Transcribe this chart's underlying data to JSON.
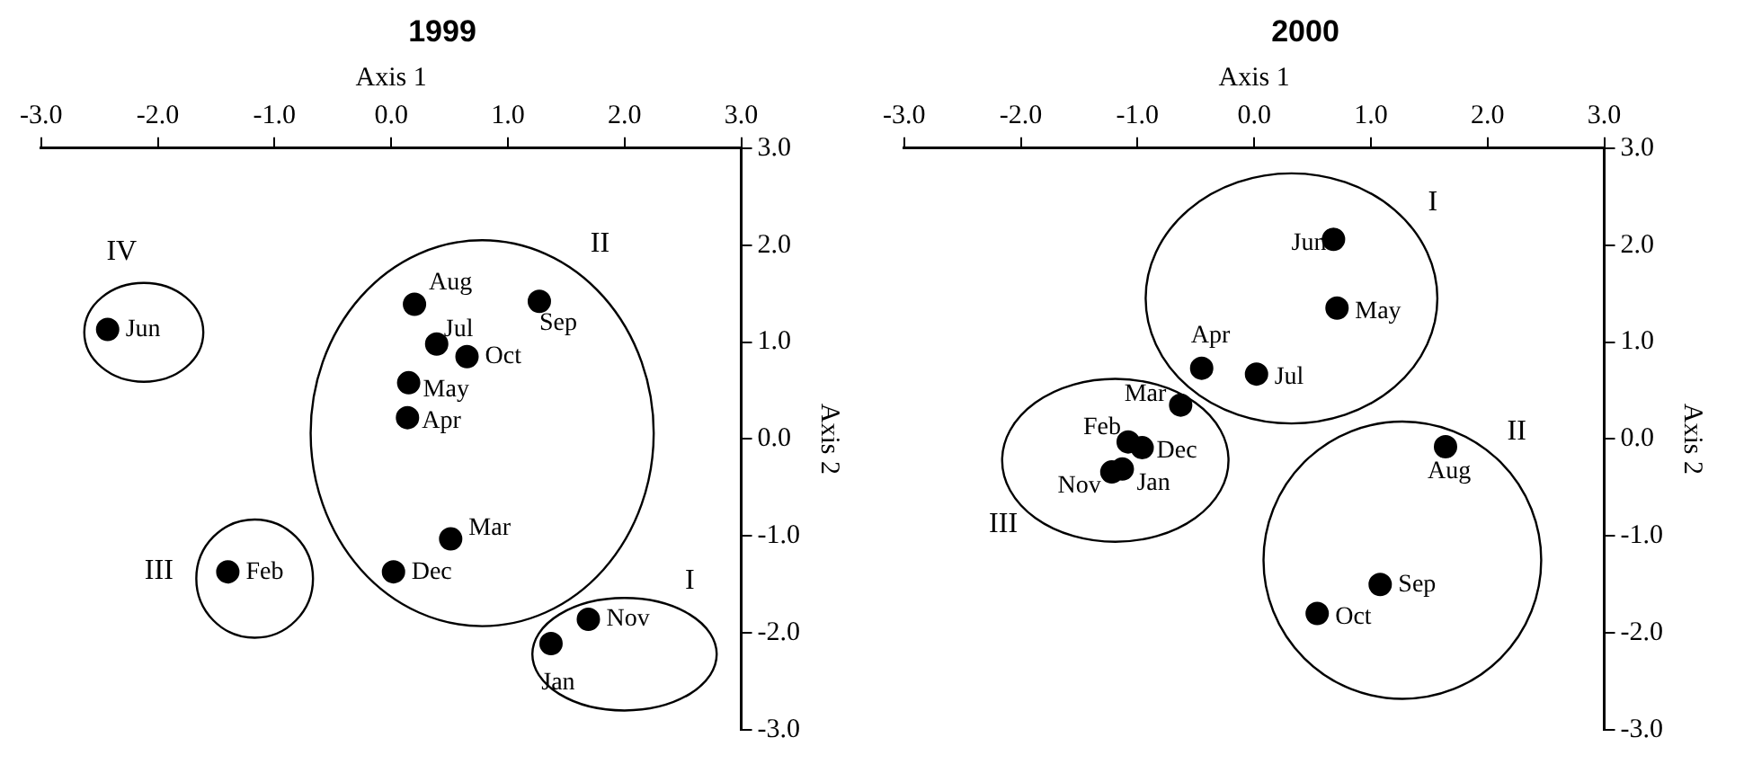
{
  "chart_data": [
    {
      "type": "scatter",
      "title": "1999",
      "xlabel": "Axis 1",
      "ylabel": "Axis 2",
      "xlim": [
        -3,
        3
      ],
      "xticks": [
        {
          "value": -3,
          "label": "-3.0"
        },
        {
          "value": -2,
          "label": "-2.0"
        },
        {
          "value": -1,
          "label": "-1.0"
        },
        {
          "value": 0,
          "label": "0.0"
        },
        {
          "value": 1,
          "label": "1.0"
        },
        {
          "value": 2,
          "label": "2.0"
        },
        {
          "value": 3,
          "label": "3.0"
        }
      ],
      "ylim": [
        -3,
        3
      ],
      "yticks": [
        {
          "value": -3,
          "label": "-3.0"
        },
        {
          "value": -2,
          "label": "-2.0"
        },
        {
          "value": -1,
          "label": "-1.0"
        },
        {
          "value": 0,
          "label": "0.0"
        },
        {
          "value": 1,
          "label": "1.0"
        },
        {
          "value": 2,
          "label": "2.0"
        },
        {
          "value": 3,
          "label": "3.0"
        }
      ],
      "grid": false,
      "legend": false,
      "marker": "circle",
      "series": [
        {
          "name": "Jan",
          "color": "#000000",
          "x": [
            1.37
          ],
          "values": [
            -2.11
          ]
        },
        {
          "name": "Feb",
          "color": "#000000",
          "x": [
            -1.4
          ],
          "values": [
            -1.37
          ]
        },
        {
          "name": "Mar",
          "color": "#000000",
          "x": [
            0.51
          ],
          "values": [
            -1.03
          ]
        },
        {
          "name": "Apr",
          "color": "#000000",
          "x": [
            0.14
          ],
          "values": [
            0.22
          ]
        },
        {
          "name": "May",
          "color": "#000000",
          "x": [
            0.15
          ],
          "values": [
            0.58
          ]
        },
        {
          "name": "Jun",
          "color": "#000000",
          "x": [
            -2.43
          ],
          "values": [
            1.13
          ]
        },
        {
          "name": "Jul",
          "color": "#000000",
          "x": [
            0.39
          ],
          "values": [
            0.98
          ]
        },
        {
          "name": "Aug",
          "color": "#000000",
          "x": [
            0.2
          ],
          "values": [
            1.39
          ]
        },
        {
          "name": "Sep",
          "color": "#000000",
          "x": [
            1.27
          ],
          "values": [
            1.42
          ]
        },
        {
          "name": "Oct",
          "color": "#000000",
          "x": [
            0.65
          ],
          "values": [
            0.85
          ]
        },
        {
          "name": "Nov",
          "color": "#000000",
          "x": [
            1.69
          ],
          "values": [
            -1.86
          ]
        },
        {
          "name": "Dec",
          "color": "#000000",
          "x": [
            0.02
          ],
          "values": [
            -1.37
          ]
        }
      ],
      "annotations": [
        "I",
        "II",
        "III",
        "IV"
      ]
    },
    {
      "type": "scatter",
      "title": "2000",
      "xlabel": "Axis 1",
      "ylabel": "Axis 2",
      "xlim": [
        -3,
        3
      ],
      "xticks": [
        {
          "value": -3,
          "label": "-3.0"
        },
        {
          "value": -2,
          "label": "-2.0"
        },
        {
          "value": -1,
          "label": "-1.0"
        },
        {
          "value": 0,
          "label": "0.0"
        },
        {
          "value": 1,
          "label": "1.0"
        },
        {
          "value": 2,
          "label": "2.0"
        },
        {
          "value": 3,
          "label": "3.0"
        }
      ],
      "ylim": [
        -3,
        3
      ],
      "yticks": [
        {
          "value": -3,
          "label": "-3.0"
        },
        {
          "value": -2,
          "label": "-2.0"
        },
        {
          "value": -1,
          "label": "-1.0"
        },
        {
          "value": 0,
          "label": "0.0"
        },
        {
          "value": 1,
          "label": "1.0"
        },
        {
          "value": 2,
          "label": "2.0"
        },
        {
          "value": 3,
          "label": "3.0"
        }
      ],
      "grid": false,
      "legend": false,
      "marker": "circle",
      "series": [
        {
          "name": "Jan",
          "color": "#000000",
          "x": [
            -1.13
          ],
          "values": [
            -0.31
          ]
        },
        {
          "name": "Feb",
          "color": "#000000",
          "x": [
            -1.08
          ],
          "values": [
            -0.03
          ]
        },
        {
          "name": "Mar",
          "color": "#000000",
          "x": [
            -0.63
          ],
          "values": [
            0.35
          ]
        },
        {
          "name": "Apr",
          "color": "#000000",
          "x": [
            -0.45
          ],
          "values": [
            0.73
          ]
        },
        {
          "name": "May",
          "color": "#000000",
          "x": [
            0.71
          ],
          "values": [
            1.35
          ]
        },
        {
          "name": "Jun",
          "color": "#000000",
          "x": [
            0.68
          ],
          "values": [
            2.06
          ]
        },
        {
          "name": "Jul",
          "color": "#000000",
          "x": [
            0.02
          ],
          "values": [
            0.67
          ]
        },
        {
          "name": "Aug",
          "color": "#000000",
          "x": [
            1.64
          ],
          "values": [
            -0.08
          ]
        },
        {
          "name": "Sep",
          "color": "#000000",
          "x": [
            1.08
          ],
          "values": [
            -1.5
          ]
        },
        {
          "name": "Oct",
          "color": "#000000",
          "x": [
            0.54
          ],
          "values": [
            -1.8
          ]
        },
        {
          "name": "Nov",
          "color": "#000000",
          "x": [
            -1.22
          ],
          "values": [
            -0.34
          ]
        },
        {
          "name": "Dec",
          "color": "#000000",
          "x": [
            -0.96
          ],
          "values": [
            -0.09
          ]
        }
      ],
      "annotations": [
        "I",
        "II",
        "III"
      ]
    }
  ]
}
